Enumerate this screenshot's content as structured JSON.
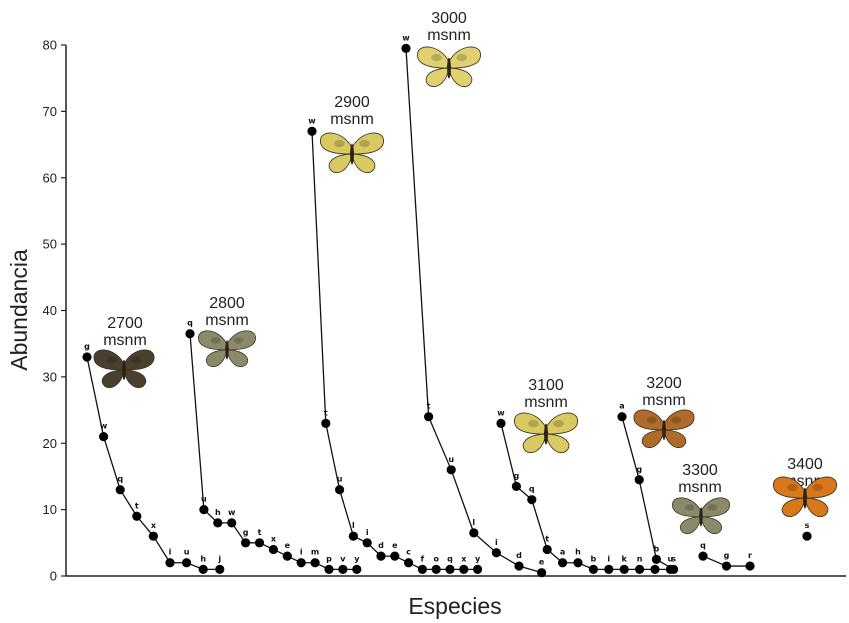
{
  "chart_data": {
    "type": "line",
    "xlabel": "Especies",
    "ylabel": "Abundancia",
    "ylim": [
      0,
      80
    ],
    "yticks": [
      0,
      10,
      20,
      30,
      40,
      50,
      60,
      70,
      80
    ],
    "grid": false,
    "series": [
      {
        "name": "2700 msnm",
        "label_lines": [
          "2700",
          "msnm"
        ],
        "butterfly_color": "#4a4030",
        "points": [
          {
            "x": 0,
            "y": 33,
            "label": "g"
          },
          {
            "x": 1,
            "y": 21,
            "label": "w"
          },
          {
            "x": 2,
            "y": 13,
            "label": "q"
          },
          {
            "x": 3,
            "y": 9,
            "label": "t"
          },
          {
            "x": 4,
            "y": 6,
            "label": "x"
          },
          {
            "x": 5,
            "y": 2,
            "label": "i"
          },
          {
            "x": 6,
            "y": 2,
            "label": "u"
          },
          {
            "x": 7,
            "y": 1,
            "label": "h"
          },
          {
            "x": 8,
            "y": 1,
            "label": "j"
          }
        ]
      },
      {
        "name": "2800 msnm",
        "label_lines": [
          "2800",
          "msnm"
        ],
        "butterfly_color": "#8a8a6a",
        "points": [
          {
            "x": 0,
            "y": 36.5,
            "label": "q"
          },
          {
            "x": 1,
            "y": 10,
            "label": "u"
          },
          {
            "x": 2,
            "y": 8,
            "label": "h"
          },
          {
            "x": 3,
            "y": 8,
            "label": "w"
          },
          {
            "x": 4,
            "y": 5,
            "label": "g"
          },
          {
            "x": 5,
            "y": 5,
            "label": "t"
          },
          {
            "x": 6,
            "y": 4,
            "label": "x"
          },
          {
            "x": 7,
            "y": 3,
            "label": "e"
          },
          {
            "x": 8,
            "y": 2,
            "label": "i"
          },
          {
            "x": 9,
            "y": 2,
            "label": "m"
          },
          {
            "x": 10,
            "y": 1,
            "label": "p"
          },
          {
            "x": 11,
            "y": 1,
            "label": "v"
          },
          {
            "x": 12,
            "y": 1,
            "label": "y"
          }
        ]
      },
      {
        "name": "2900 msnm",
        "label_lines": [
          "2900",
          "msnm"
        ],
        "butterfly_color": "#d8c960",
        "points": [
          {
            "x": 0,
            "y": 67,
            "label": "w"
          },
          {
            "x": 1,
            "y": 23,
            "label": "t"
          },
          {
            "x": 2,
            "y": 13,
            "label": "u"
          },
          {
            "x": 3,
            "y": 6,
            "label": "l"
          },
          {
            "x": 4,
            "y": 5,
            "label": "i"
          },
          {
            "x": 5,
            "y": 3,
            "label": "d"
          },
          {
            "x": 6,
            "y": 3,
            "label": "e"
          },
          {
            "x": 7,
            "y": 2,
            "label": "c"
          },
          {
            "x": 8,
            "y": 1,
            "label": "f"
          },
          {
            "x": 9,
            "y": 1,
            "label": "o"
          },
          {
            "x": 10,
            "y": 1,
            "label": "q"
          },
          {
            "x": 11,
            "y": 1,
            "label": "x"
          },
          {
            "x": 12,
            "y": 1,
            "label": "y"
          }
        ]
      },
      {
        "name": "3000 msnm",
        "label_lines": [
          "3000",
          "msnm"
        ],
        "butterfly_color": "#e0d070",
        "points": [
          {
            "x": 0,
            "y": 79.5,
            "label": "w"
          },
          {
            "x": 1,
            "y": 24,
            "label": "t"
          },
          {
            "x": 2,
            "y": 16,
            "label": "u"
          },
          {
            "x": 3,
            "y": 6.5,
            "label": "l"
          },
          {
            "x": 4,
            "y": 3.5,
            "label": "i"
          },
          {
            "x": 5,
            "y": 1.5,
            "label": "d"
          },
          {
            "x": 6,
            "y": 0.5,
            "label": "e"
          }
        ]
      },
      {
        "name": "3100 msnm",
        "label_lines": [
          "3100",
          "msnm"
        ],
        "butterfly_color": "#d8c960",
        "points": [
          {
            "x": 0,
            "y": 23,
            "label": "w"
          },
          {
            "x": 1,
            "y": 13.5,
            "label": "g"
          },
          {
            "x": 2,
            "y": 11.5,
            "label": "q"
          },
          {
            "x": 3,
            "y": 4,
            "label": "t"
          },
          {
            "x": 4,
            "y": 2,
            "label": "a"
          },
          {
            "x": 5,
            "y": 2,
            "label": "h"
          },
          {
            "x": 6,
            "y": 1,
            "label": "b"
          },
          {
            "x": 7,
            "y": 1,
            "label": "i"
          },
          {
            "x": 8,
            "y": 1,
            "label": "k"
          },
          {
            "x": 9,
            "y": 1,
            "label": "n"
          },
          {
            "x": 10,
            "y": 1,
            "label": "s"
          },
          {
            "x": 11,
            "y": 1,
            "label": "u"
          }
        ]
      },
      {
        "name": "3200 msnm",
        "label_lines": [
          "3200",
          "msnm"
        ],
        "butterfly_color": "#b06a2a",
        "points": [
          {
            "x": 0,
            "y": 24,
            "label": "a"
          },
          {
            "x": 1,
            "y": 14.5,
            "label": "g"
          },
          {
            "x": 2,
            "y": 2.5,
            "label": "b"
          },
          {
            "x": 3,
            "y": 1,
            "label": "s"
          }
        ]
      },
      {
        "name": "3300 msnm",
        "label_lines": [
          "3300",
          "msnm"
        ],
        "butterfly_color": "#8a8a6a",
        "points": [
          {
            "x": 0,
            "y": 3,
            "label": "q"
          },
          {
            "x": 1,
            "y": 1.5,
            "label": "g"
          },
          {
            "x": 2,
            "y": 1.5,
            "label": "r"
          }
        ]
      },
      {
        "name": "3400 msnm",
        "label_lines": [
          "3400",
          "msnm"
        ],
        "butterfly_color": "#d8781a",
        "points": [
          {
            "x": 0,
            "y": 6,
            "label": "s"
          }
        ]
      }
    ]
  }
}
